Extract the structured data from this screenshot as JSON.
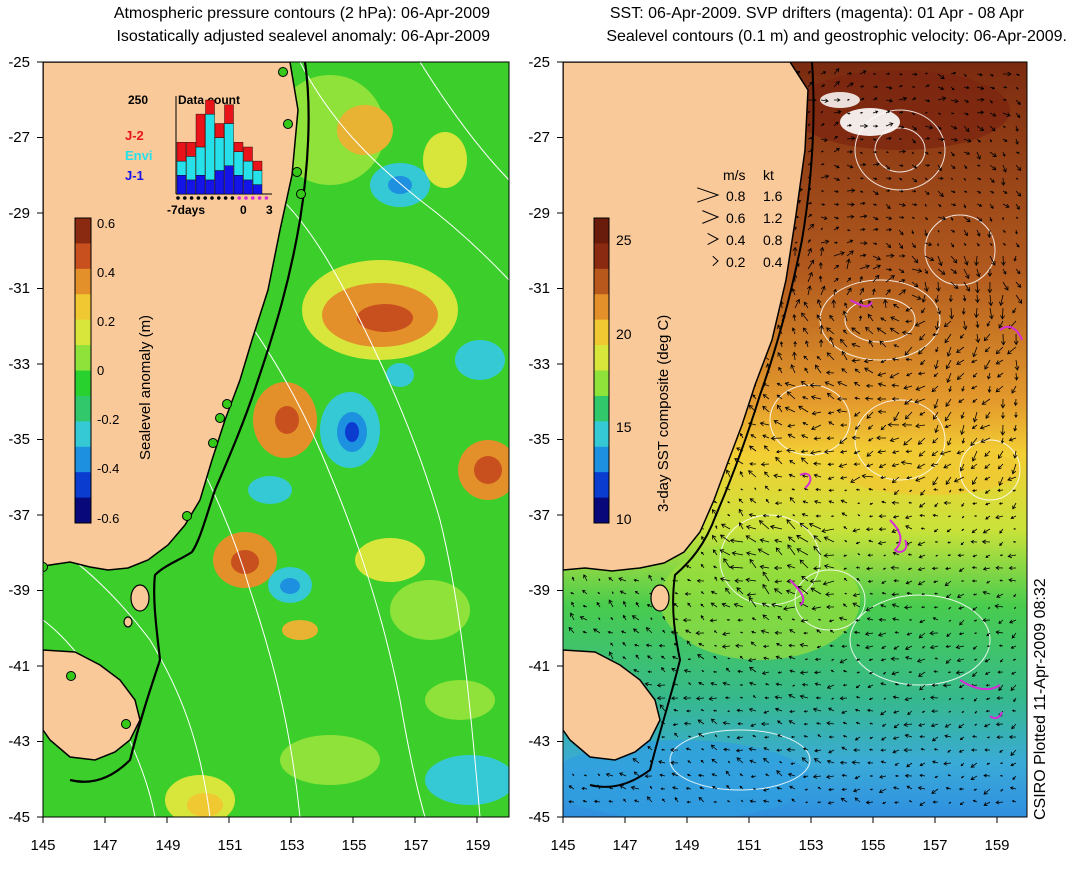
{
  "left_panel": {
    "title_line1": "Atmospheric pressure contours (2 hPa): 06-Apr-2009",
    "title_line2": "Isostatically adjusted sealevel anomaly: 06-Apr-2009",
    "colorbar": {
      "label": "Sealevel anomaly (m)",
      "ticks": [
        "0.6",
        "0.4",
        "0.2",
        "0",
        "-0.2",
        "-0.4",
        "-0.6"
      ],
      "colors": [
        "#08087a",
        "#0a3cd0",
        "#1e90e0",
        "#35c9d6",
        "#30c86a",
        "#28d12e",
        "#8fe23a",
        "#d8e63c",
        "#f0c832",
        "#e4902a",
        "#c8501e",
        "#8a2a10"
      ]
    },
    "inset": {
      "max_label": "250",
      "title": "Data count",
      "legend": [
        {
          "label": "J-2",
          "color": "#e8141a"
        },
        {
          "label": "Envi",
          "color": "#26e0ea"
        },
        {
          "label": "J-1",
          "color": "#1414e8"
        }
      ],
      "x_labels": [
        "-7days",
        "0",
        "3"
      ],
      "bars": [
        {
          "j1": 0.2,
          "envi": 0.15,
          "j2": 0.2
        },
        {
          "j1": 0.15,
          "envi": 0.25,
          "j2": 0.15
        },
        {
          "j1": 0.2,
          "envi": 0.3,
          "j2": 0.35
        },
        {
          "j1": 0.15,
          "envi": 0.7,
          "j2": 0.15
        },
        {
          "j1": 0.25,
          "envi": 0.35,
          "j2": 0.15
        },
        {
          "j1": 0.3,
          "envi": 0.45,
          "j2": 0.2
        },
        {
          "j1": 0.2,
          "envi": 0.25,
          "j2": 0.1
        },
        {
          "j1": 0.15,
          "envi": 0.2,
          "j2": 0.15
        },
        {
          "j1": 0.1,
          "envi": 0.15,
          "j2": 0.1
        }
      ]
    }
  },
  "right_panel": {
    "title_line1": "SST: 06-Apr-2009. SVP drifters (magenta): 01 Apr - 08 Apr",
    "title_line2": "Sealevel contours (0.1 m) and geostrophic velocity: 06-Apr-2009.",
    "colorbar": {
      "label": "3-day SST composite (deg C)",
      "ticks": [
        "25",
        "20",
        "15",
        "10"
      ],
      "colors": [
        "#08087a",
        "#0a3cd0",
        "#1e90e0",
        "#35c9d6",
        "#30c86a",
        "#8fe23a",
        "#d8e63c",
        "#f0c832",
        "#e4902a",
        "#b8581c",
        "#8a2a10",
        "#6a1c0c"
      ]
    },
    "velocity_legend": {
      "headers": [
        "m/s",
        "kt"
      ],
      "rows": [
        {
          "ms": "0.8",
          "kt": "1.6",
          "speed": 0.8
        },
        {
          "ms": "0.6",
          "kt": "1.2",
          "speed": 0.6
        },
        {
          "ms": "0.4",
          "kt": "0.8",
          "speed": 0.4
        },
        {
          "ms": "0.2",
          "kt": "0.4",
          "speed": 0.2
        }
      ]
    }
  },
  "axes": {
    "lat_labels": [
      "-25",
      "-27",
      "-29",
      "-31",
      "-33",
      "-35",
      "-37",
      "-39",
      "-41",
      "-43",
      "-45"
    ],
    "lon_labels": [
      "145",
      "147",
      "149",
      "151",
      "153",
      "155",
      "157",
      "159"
    ]
  },
  "colors": {
    "land": "#f9c99a",
    "ocean_green": "#3ccf2c",
    "coast": "#000000"
  },
  "credit": "CSIRO Plotted 11-Apr-2009 08:32"
}
